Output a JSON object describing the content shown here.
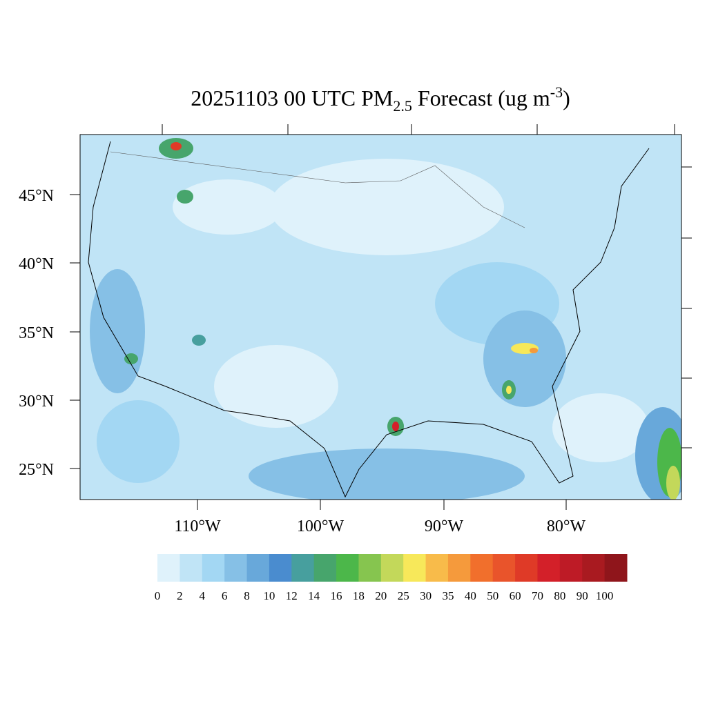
{
  "title": {
    "main": "20251103 00 UTC PM",
    "sub": "2.5",
    "rest": " Forecast (ug m",
    "sup": "-3",
    "end": ")"
  },
  "lat_labels": [
    "45°N",
    "40°N",
    "35°N",
    "30°N",
    "25°N"
  ],
  "lon_labels": [
    "110°W",
    "100°W",
    "90°W",
    "80°W"
  ],
  "colorbar": {
    "labels": [
      "0",
      "2",
      "4",
      "6",
      "8",
      "10",
      "12",
      "14",
      "16",
      "18",
      "20",
      "25",
      "30",
      "35",
      "40",
      "50",
      "60",
      "70",
      "80",
      "90",
      "100"
    ],
    "colors": [
      "#dff2fb",
      "#c0e4f6",
      "#a3d7f3",
      "#86c0e6",
      "#68a8da",
      "#4a8ccf",
      "#479f9e",
      "#47a56c",
      "#4cb74a",
      "#86c54f",
      "#c3d85a",
      "#f7e85a",
      "#f8bb4a",
      "#f59a3c",
      "#f16f2c",
      "#e9542b",
      "#df3a27",
      "#d32029",
      "#be1b26",
      "#a91a20",
      "#8f151b"
    ]
  }
}
